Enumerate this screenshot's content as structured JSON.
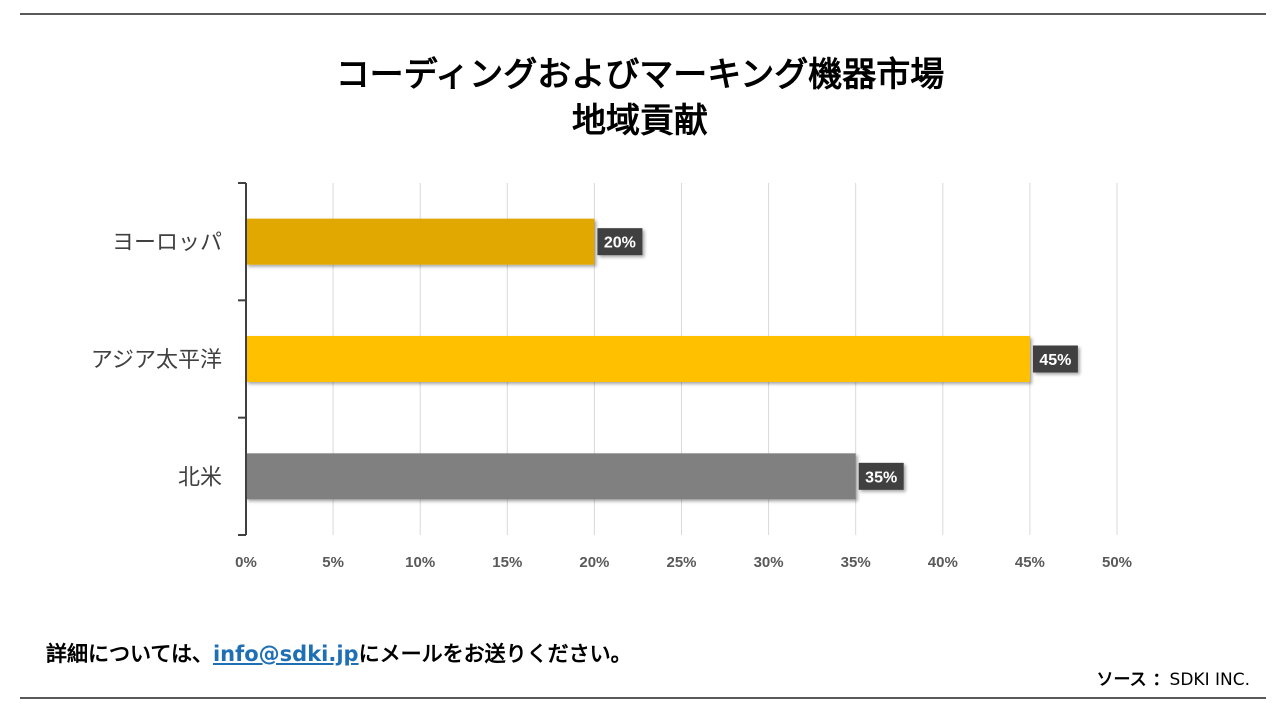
{
  "chart_data": {
    "type": "bar",
    "orientation": "horizontal",
    "title_line1": "コーディングおよびマーキング機器市場",
    "title_line2": "地域貢献",
    "categories": [
      "ヨーロッパ",
      "アジア太平洋",
      "北米"
    ],
    "values": [
      20,
      45,
      35
    ],
    "data_labels": [
      "20%",
      "45%",
      "35%"
    ],
    "bar_colors": [
      "#e0a800",
      "#ffc000",
      "#808080"
    ],
    "xlim": [
      0,
      50
    ],
    "xticks": [
      0,
      5,
      10,
      15,
      20,
      25,
      30,
      35,
      40,
      45,
      50
    ],
    "xtick_labels": [
      "0%",
      "5%",
      "10%",
      "15%",
      "20%",
      "25%",
      "30%",
      "35%",
      "40%",
      "45%",
      "50%"
    ],
    "grid": true,
    "legend": "none"
  },
  "footer": {
    "prefix": "詳細については、",
    "email": "info@sdki.jp",
    "suffix": "にメールをお送りください。"
  },
  "source": {
    "label": "ソース ：",
    "value": "SDKI INC."
  },
  "colors": {
    "grid": "#d9d9d9",
    "axis": "#404040",
    "label_box": "#404040",
    "label_text": "#ffffff",
    "tick_text": "#595959"
  }
}
